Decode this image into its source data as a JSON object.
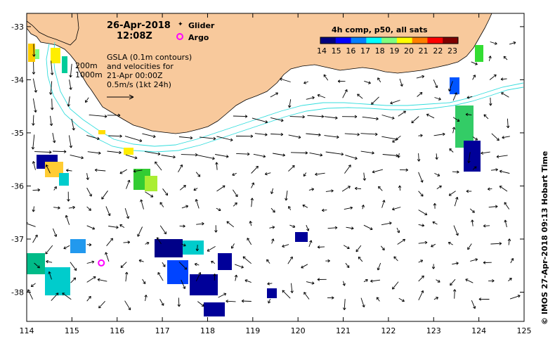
{
  "title": {
    "date": "26-Apr-2018",
    "time": "12:08Z"
  },
  "legend": {
    "glider_label": "Glider",
    "argo_label": "Argo",
    "glider_color": "#ff33ff",
    "argo_color": "#ff00ff"
  },
  "gsla_note": {
    "line1": "GSLA (0.1m contours)",
    "line2": "and velocities for",
    "line3": "21-Apr 00:00Z",
    "line4": "0.5m/s (1kt 24h)"
  },
  "depth_labels": {
    "d200": "200m",
    "d1000": "1000m"
  },
  "colorbar": {
    "title": "4h comp, p50, all sats",
    "ticks": [
      "14",
      "15",
      "16",
      "17",
      "18",
      "19",
      "20",
      "21",
      "22",
      "23"
    ],
    "colors": [
      "#00007f",
      "#0000ff",
      "#007fff",
      "#00ffff",
      "#7fff7f",
      "#ffff00",
      "#ff7f00",
      "#ff0000",
      "#7f0000"
    ]
  },
  "axes": {
    "x_ticks": [
      "114",
      "115",
      "116",
      "117",
      "118",
      "119",
      "120",
      "121",
      "122",
      "123",
      "124",
      "125"
    ],
    "y_ticks": [
      "-33",
      "-34",
      "-35",
      "-36",
      "-37",
      "-38"
    ]
  },
  "credit": "© IMOS 27-Apr-2018 09:13 Hobart Time",
  "colors": {
    "land": "#f8c99c",
    "isobath": "#33dddd"
  },
  "argo_float": {
    "lon": 115.65,
    "lat": -37.45
  }
}
